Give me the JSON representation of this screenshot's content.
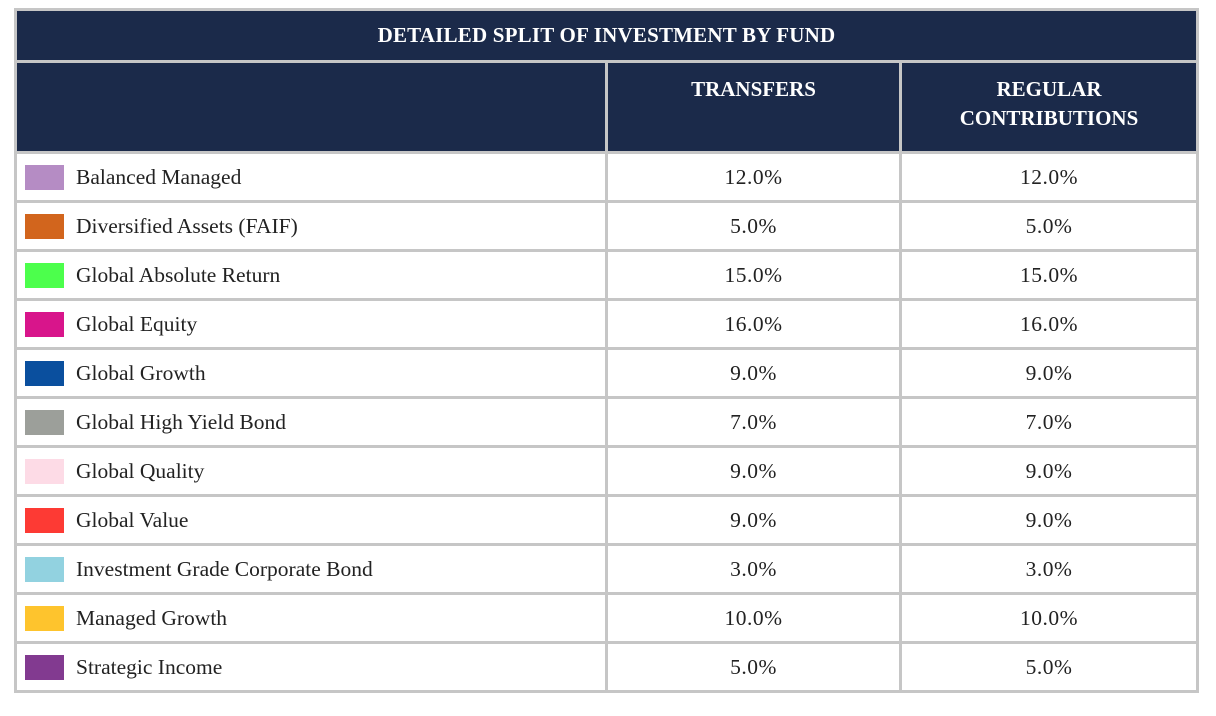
{
  "table": {
    "title": "DETAILED SPLIT OF INVESTMENT BY FUND",
    "columns": [
      "",
      "TRANSFERS",
      "REGULAR CONTRIBUTIONS"
    ],
    "rows": [
      {
        "fund": "Balanced Managed",
        "color": "#b58cc4",
        "transfers": "12.0%",
        "regular": "12.0%"
      },
      {
        "fund": "Diversified Assets (FAIF)",
        "color": "#d2651d",
        "transfers": "5.0%",
        "regular": "5.0%"
      },
      {
        "fund": "Global Absolute Return",
        "color": "#4cff4c",
        "transfers": "15.0%",
        "regular": "15.0%"
      },
      {
        "fund": "Global Equity",
        "color": "#d8158b",
        "transfers": "16.0%",
        "regular": "16.0%"
      },
      {
        "fund": "Global Growth",
        "color": "#0a4f9e",
        "transfers": "9.0%",
        "regular": "9.0%"
      },
      {
        "fund": "Global High Yield Bond",
        "color": "#9c9f9a",
        "transfers": "7.0%",
        "regular": "7.0%"
      },
      {
        "fund": "Global Quality",
        "color": "#fddbe6",
        "transfers": "9.0%",
        "regular": "9.0%"
      },
      {
        "fund": "Global Value",
        "color": "#fd3a34",
        "transfers": "9.0%",
        "regular": "9.0%"
      },
      {
        "fund": "Investment Grade Corporate Bond",
        "color": "#92d2e0",
        "transfers": "3.0%",
        "regular": "3.0%"
      },
      {
        "fund": "Managed Growth",
        "color": "#fec42d",
        "transfers": "10.0%",
        "regular": "10.0%"
      },
      {
        "fund": "Strategic Income",
        "color": "#823a90",
        "transfers": "5.0%",
        "regular": "5.0%"
      }
    ]
  }
}
